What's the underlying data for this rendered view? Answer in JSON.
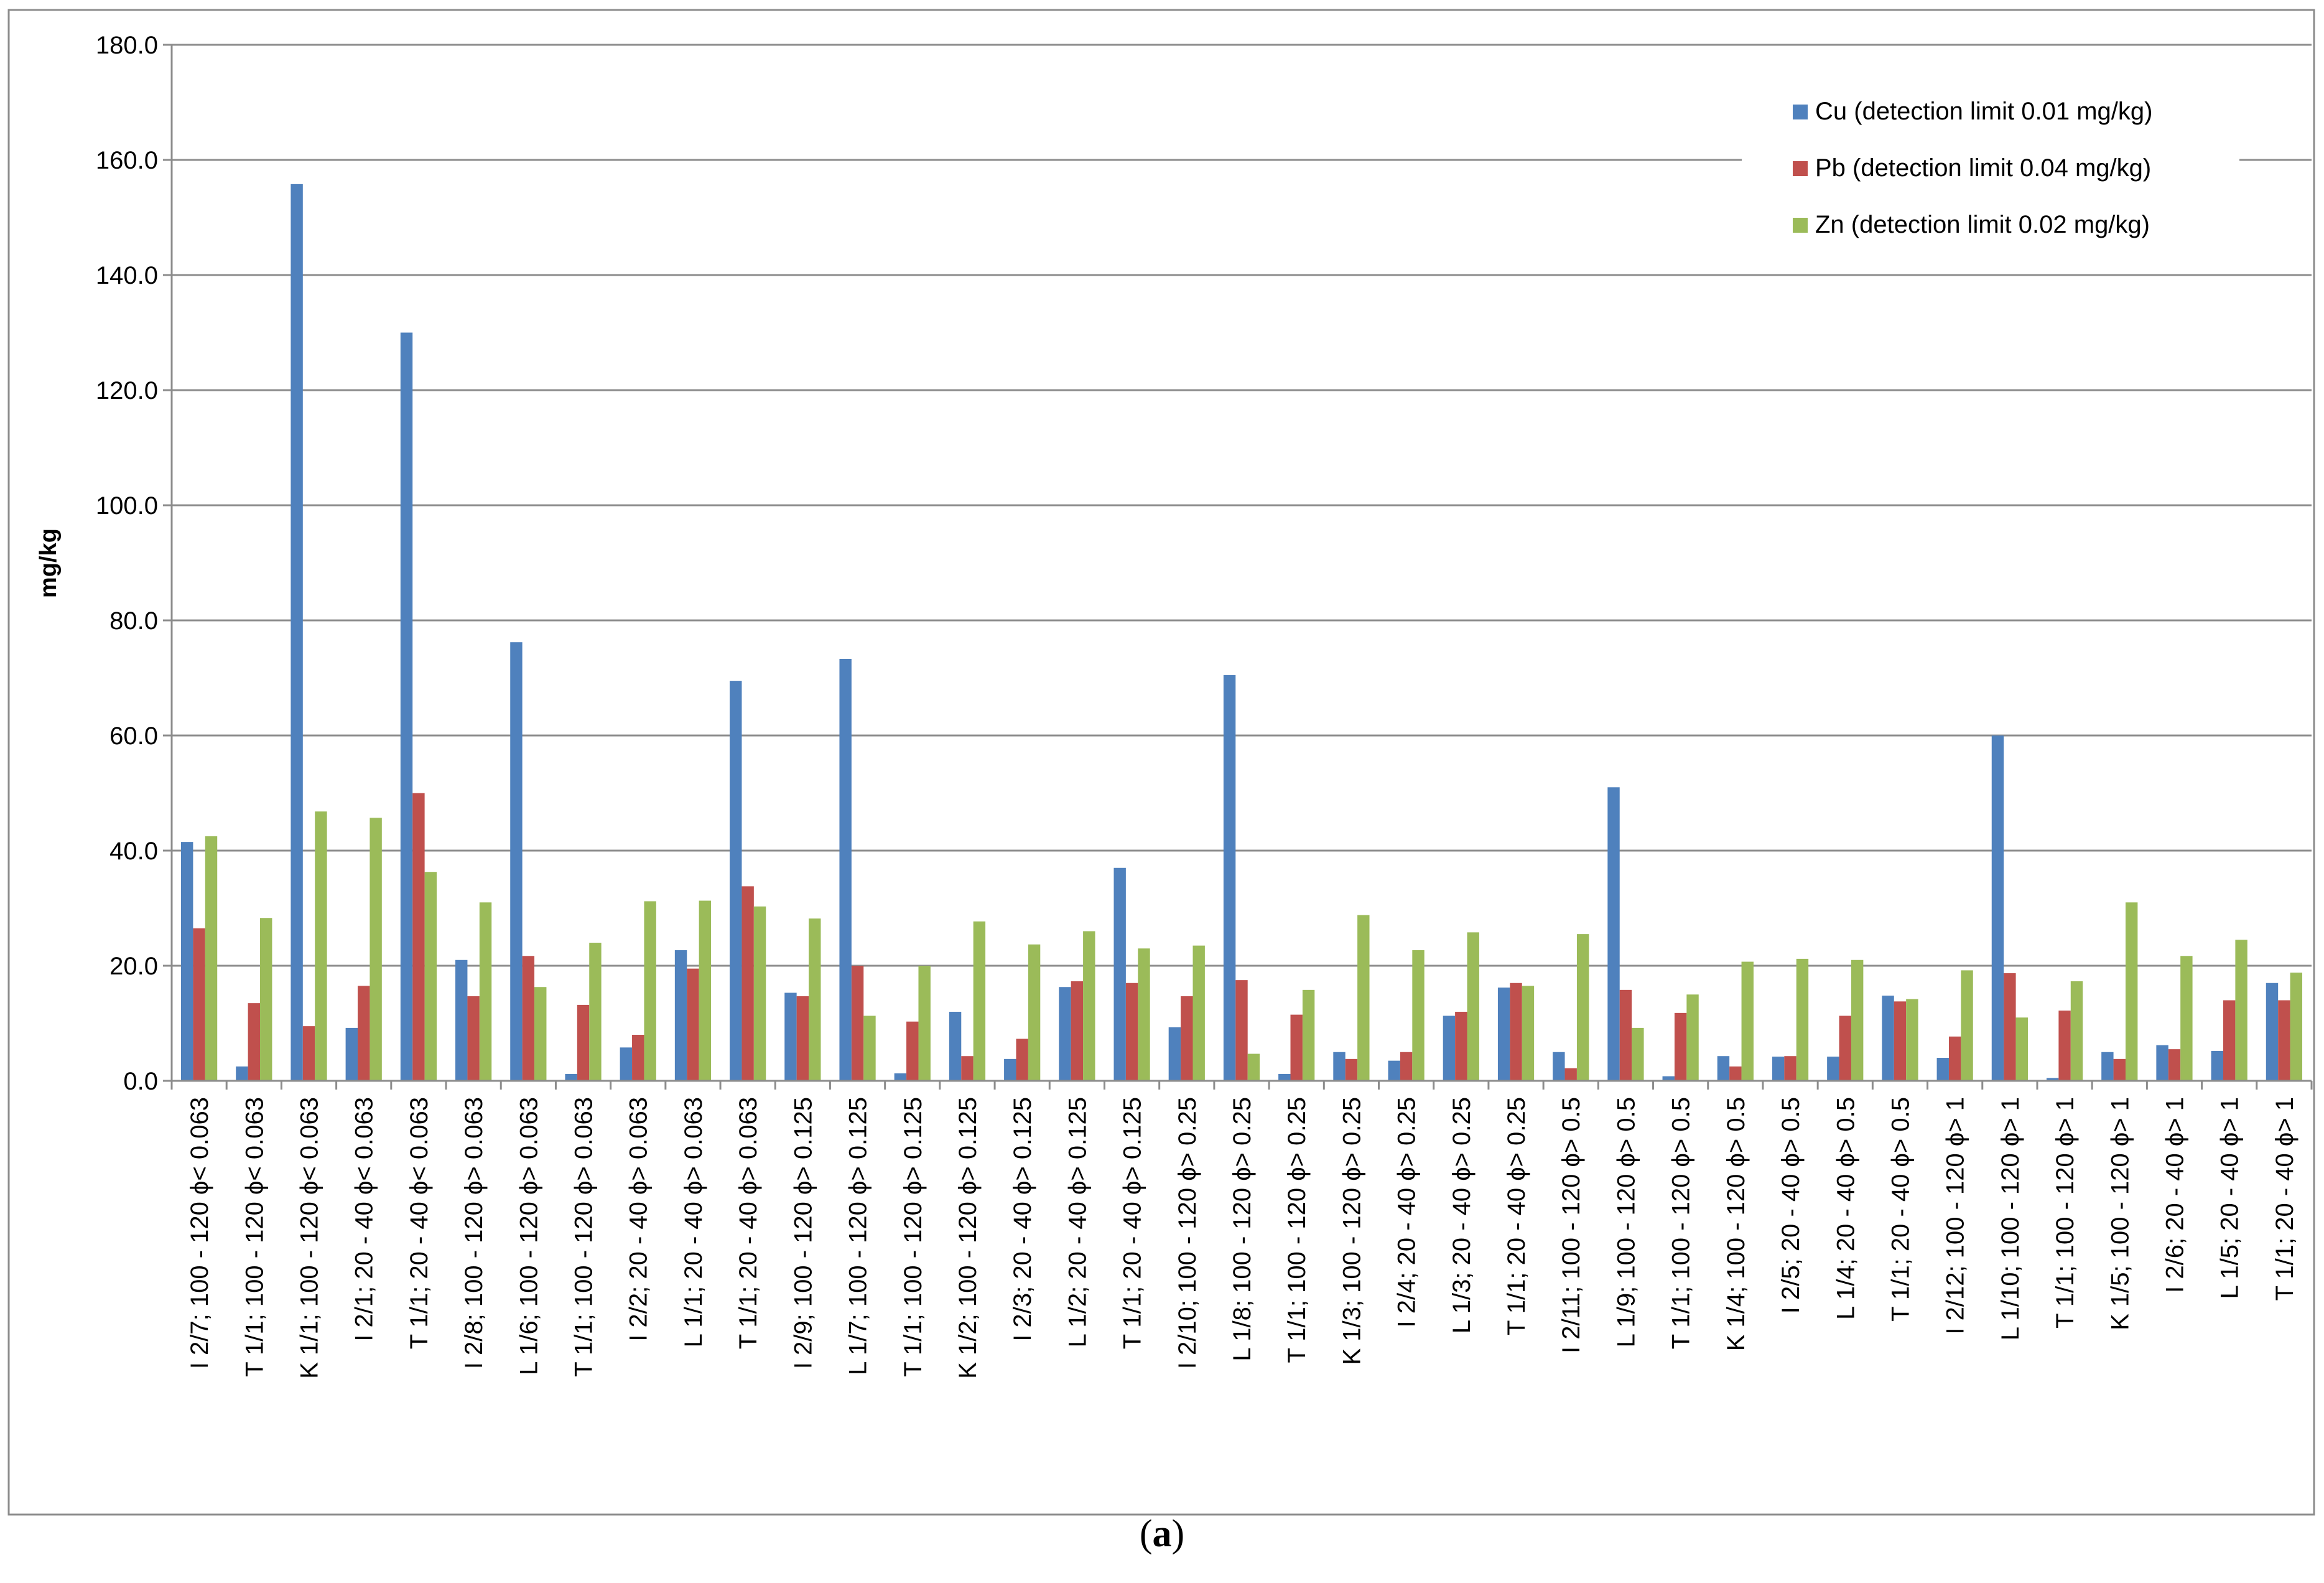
{
  "chart_data": {
    "type": "bar",
    "title": "",
    "ylabel": "mg/kg",
    "xlabel": "",
    "ylim": [
      0,
      180
    ],
    "yticks": [
      "0.0",
      "20.0",
      "40.0",
      "60.0",
      "80.0",
      "100.0",
      "120.0",
      "140.0",
      "160.0",
      "180.0"
    ],
    "grid": true,
    "legend_position": "top-right",
    "categories": [
      "I 2/7; 100 - 120 ϕ< 0.063",
      "T 1/1; 100 - 120 ϕ< 0.063",
      "K 1/1; 100 - 120 ϕ< 0.063",
      "I 2/1; 20 - 40 ϕ< 0.063",
      "T 1/1; 20 - 40 ϕ< 0.063",
      "I 2/8; 100 - 120 ϕ> 0.063",
      "L 1/6; 100 - 120 ϕ> 0.063",
      "T 1/1; 100 - 120 ϕ> 0.063",
      "I 2/2; 20 - 40 ϕ> 0.063",
      "L 1/1; 20 - 40 ϕ> 0.063",
      "T 1/1; 20 - 40 ϕ> 0.063",
      "I 2/9; 100 - 120 ϕ> 0.125",
      "L 1/7; 100 - 120 ϕ> 0.125",
      "T 1/1; 100 - 120 ϕ> 0.125",
      "K 1/2; 100 - 120 ϕ> 0.125",
      "I 2/3; 20 - 40 ϕ> 0.125",
      "L 1/2; 20 - 40 ϕ> 0.125",
      "T 1/1; 20 - 40 ϕ> 0.125",
      "I 2/10; 100 - 120 ϕ> 0.25",
      "L 1/8; 100 - 120 ϕ> 0.25",
      "T 1/1; 100 - 120 ϕ> 0.25",
      "K 1/3; 100 - 120 ϕ> 0.25",
      "I 2/4; 20 - 40 ϕ> 0.25",
      "L 1/3; 20 - 40 ϕ> 0.25",
      "T 1/1; 20 - 40 ϕ> 0.25",
      "I 2/11; 100 - 120 ϕ> 0.5",
      "L 1/9; 100 - 120 ϕ> 0.5",
      "T 1/1; 100 - 120 ϕ> 0.5",
      "K 1/4; 100 - 120 ϕ> 0.5",
      "I 2/5; 20 - 40 ϕ> 0.5",
      "L 1/4; 20 - 40 ϕ> 0.5",
      "T 1/1; 20 - 40 ϕ> 0.5",
      "I 2/12; 100 - 120 ϕ> 1",
      "L 1/10; 100 - 120 ϕ> 1",
      "T 1/1; 100 - 120 ϕ> 1",
      "K 1/5; 100 - 120 ϕ> 1",
      "I 2/6; 20 - 40 ϕ> 1",
      "L 1/5; 20 - 40 ϕ> 1",
      "T 1/1; 20 - 40 ϕ> 1"
    ],
    "series": [
      {
        "name": "Cu (detection limit 0.01 mg/kg)",
        "color": "#4F81BD",
        "values": [
          41.5,
          2.5,
          155.8,
          9.2,
          130.0,
          21.0,
          76.2,
          1.2,
          5.8,
          22.7,
          69.5,
          15.3,
          73.3,
          1.3,
          12.0,
          3.8,
          16.3,
          37.0,
          9.3,
          70.5,
          1.2,
          5.0,
          3.5,
          11.3,
          16.2,
          5.0,
          51.0,
          0.8,
          4.3,
          4.2,
          4.2,
          14.8,
          4.0,
          60.0,
          0.5,
          5.0,
          6.2,
          5.2,
          17.0
        ]
      },
      {
        "name": "Pb (detection limit 0.04 mg/kg)",
        "color": "#C0504D",
        "values": [
          26.5,
          13.5,
          9.5,
          16.5,
          50.0,
          14.7,
          21.7,
          13.2,
          8.0,
          19.5,
          33.8,
          14.7,
          20.0,
          10.3,
          4.3,
          7.3,
          17.3,
          17.0,
          14.7,
          17.5,
          11.5,
          3.8,
          5.0,
          12.0,
          17.0,
          2.2,
          15.8,
          11.8,
          2.5,
          4.3,
          11.3,
          13.8,
          7.7,
          18.7,
          12.2,
          3.8,
          5.5,
          14.0,
          14.0
        ]
      },
      {
        "name": "Zn (detection limit 0.02 mg/kg)",
        "color": "#9BBB59",
        "values": [
          42.5,
          28.3,
          46.8,
          45.7,
          36.3,
          31.0,
          16.3,
          24.0,
          31.2,
          31.3,
          30.3,
          28.2,
          11.3,
          20.0,
          27.7,
          23.7,
          26.0,
          23.0,
          23.5,
          4.7,
          15.8,
          28.8,
          22.7,
          25.8,
          16.5,
          25.5,
          9.2,
          15.0,
          20.7,
          21.2,
          21.0,
          14.2,
          19.2,
          11.0,
          17.3,
          31.0,
          21.7,
          24.5,
          18.8
        ]
      }
    ]
  },
  "caption": {
    "open": "(",
    "letter": "a",
    "close": ")"
  }
}
